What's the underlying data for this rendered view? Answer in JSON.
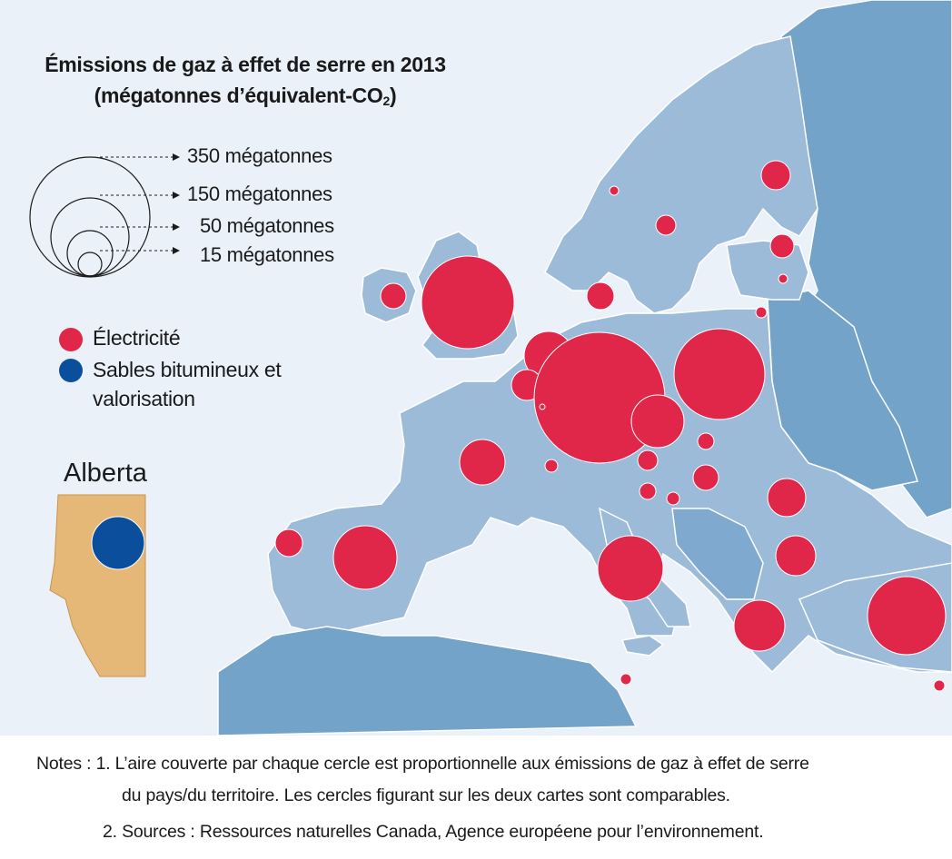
{
  "title": {
    "line1": "Émissions de gaz à effet de serre en 2013",
    "line2_main": "(mégatonnes d’équivalent-CO",
    "line2_sub": "2",
    "line2_end": ")"
  },
  "scale_legend": {
    "items": [
      {
        "label": "350 mégatonnes",
        "value": 350
      },
      {
        "label": "150 mégatonnes",
        "value": 150
      },
      {
        "label": "50 mégatonnes",
        "value": 50
      },
      {
        "label": "15 mégatonnes",
        "value": 15
      }
    ]
  },
  "legend": {
    "electricity": {
      "label": "Électricité",
      "color": "#e0274a"
    },
    "oilsands": {
      "label_line1": "Sables bitumineux et",
      "label_line2": "valorisation",
      "color": "#0b4f9c"
    }
  },
  "inset": {
    "label": "Alberta",
    "fill_color": "#e6b877"
  },
  "colors": {
    "land": "#9bbbd8",
    "non_eu_land": "#74a3c9",
    "sea": "#eaf1f8",
    "border": "#ffffff"
  },
  "notes": {
    "line1": "Notes : 1. L’aire couverte par chaque cercle est proportionnelle aux émissions de gaz à effet de serre",
    "line2": "du pays/du territoire. Les cercles figurant sur les deux cartes sont comparables.",
    "line3": "2. Sources : Ressources naturelles Canada, Agence européene pour l’environnement."
  }
}
